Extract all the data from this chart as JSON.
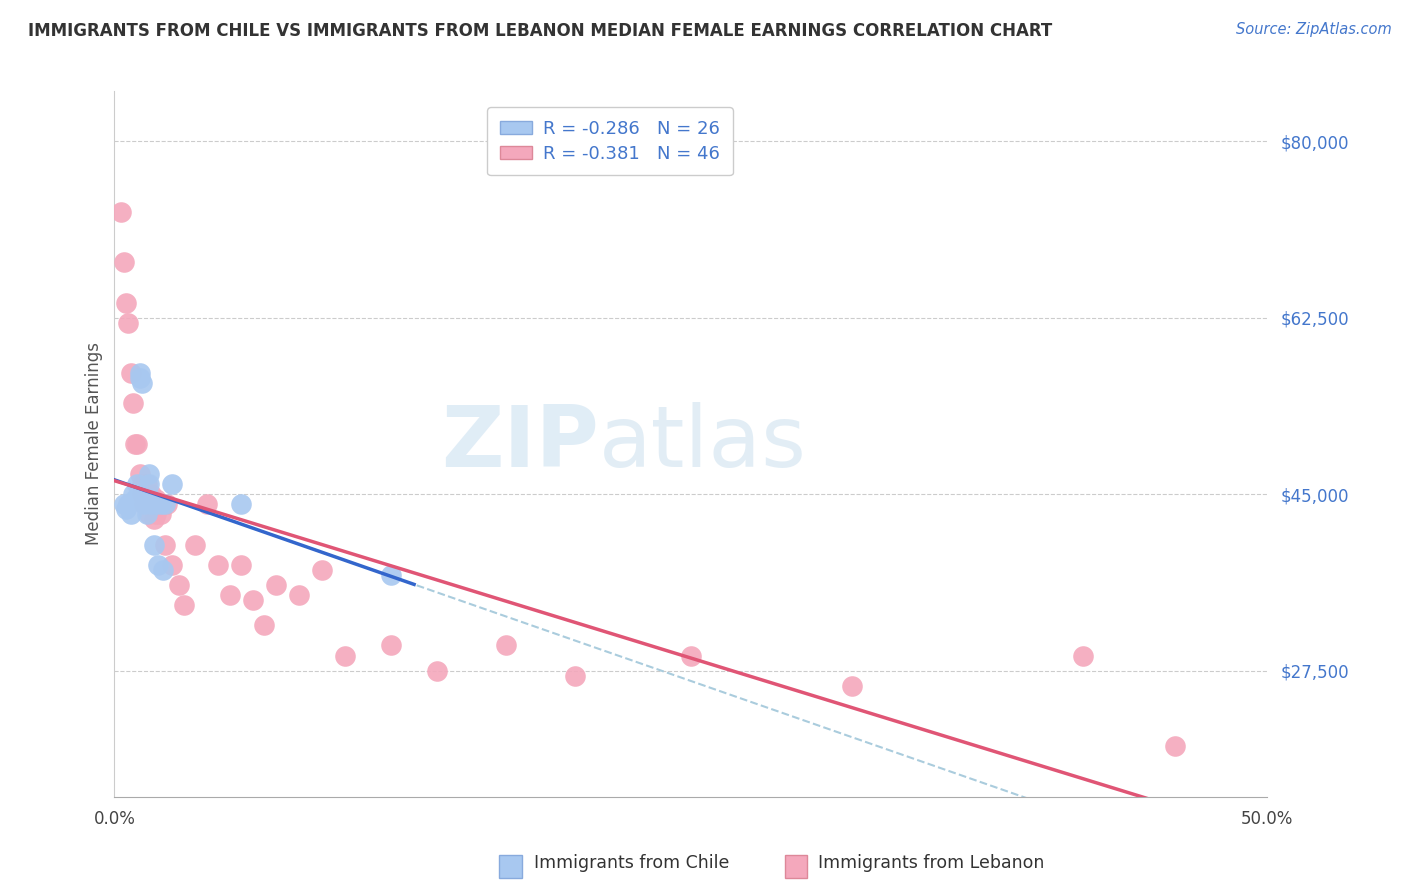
{
  "title": "IMMIGRANTS FROM CHILE VS IMMIGRANTS FROM LEBANON MEDIAN FEMALE EARNINGS CORRELATION CHART",
  "source": "Source: ZipAtlas.com",
  "ylabel": "Median Female Earnings",
  "yticks": [
    27500,
    45000,
    62500,
    80000
  ],
  "ytick_labels": [
    "$27,500",
    "$45,000",
    "$62,500",
    "$80,000"
  ],
  "xlim": [
    0.0,
    0.5
  ],
  "ylim": [
    15000,
    85000
  ],
  "watermark_zip": "ZIP",
  "watermark_atlas": "atlas",
  "legend_chile_text": "R = -0.286   N = 26",
  "legend_lebanon_text": "R = -0.381   N = 46",
  "chile_color": "#a8c8f0",
  "lebanon_color": "#f4a8bc",
  "chile_line_color": "#3366cc",
  "lebanon_line_color": "#e05575",
  "dashed_line_color": "#aaccdd",
  "bottom_legend_chile": "Immigrants from Chile",
  "bottom_legend_lebanon": "Immigrants from Lebanon",
  "chile_scatter_x": [
    0.004,
    0.005,
    0.006,
    0.007,
    0.008,
    0.009,
    0.01,
    0.011,
    0.011,
    0.012,
    0.013,
    0.013,
    0.014,
    0.015,
    0.015,
    0.016,
    0.016,
    0.017,
    0.018,
    0.019,
    0.02,
    0.021,
    0.022,
    0.025,
    0.055,
    0.12
  ],
  "chile_scatter_y": [
    44000,
    43500,
    44000,
    43000,
    45000,
    44500,
    46000,
    57000,
    56500,
    56000,
    44500,
    44000,
    43000,
    47000,
    46000,
    44500,
    44000,
    40000,
    44000,
    38000,
    44000,
    37500,
    44000,
    46000,
    44000,
    37000
  ],
  "lebanon_scatter_x": [
    0.003,
    0.004,
    0.005,
    0.006,
    0.007,
    0.008,
    0.009,
    0.01,
    0.011,
    0.012,
    0.012,
    0.013,
    0.014,
    0.015,
    0.015,
    0.016,
    0.016,
    0.017,
    0.018,
    0.018,
    0.019,
    0.02,
    0.022,
    0.023,
    0.025,
    0.028,
    0.03,
    0.035,
    0.04,
    0.045,
    0.05,
    0.055,
    0.06,
    0.065,
    0.07,
    0.08,
    0.09,
    0.1,
    0.12,
    0.14,
    0.17,
    0.2,
    0.25,
    0.32,
    0.42,
    0.46
  ],
  "lebanon_scatter_y": [
    73000,
    68000,
    64000,
    62000,
    57000,
    54000,
    50000,
    50000,
    47000,
    46000,
    45000,
    44000,
    46000,
    44500,
    43000,
    45000,
    44000,
    42500,
    44500,
    43000,
    44000,
    43000,
    40000,
    44000,
    38000,
    36000,
    34000,
    40000,
    44000,
    38000,
    35000,
    38000,
    34500,
    32000,
    36000,
    35000,
    37500,
    29000,
    30000,
    27500,
    30000,
    27000,
    29000,
    26000,
    29000,
    20000
  ],
  "chile_line_x_end": 0.13,
  "dashed_line_x_start": 0.07
}
